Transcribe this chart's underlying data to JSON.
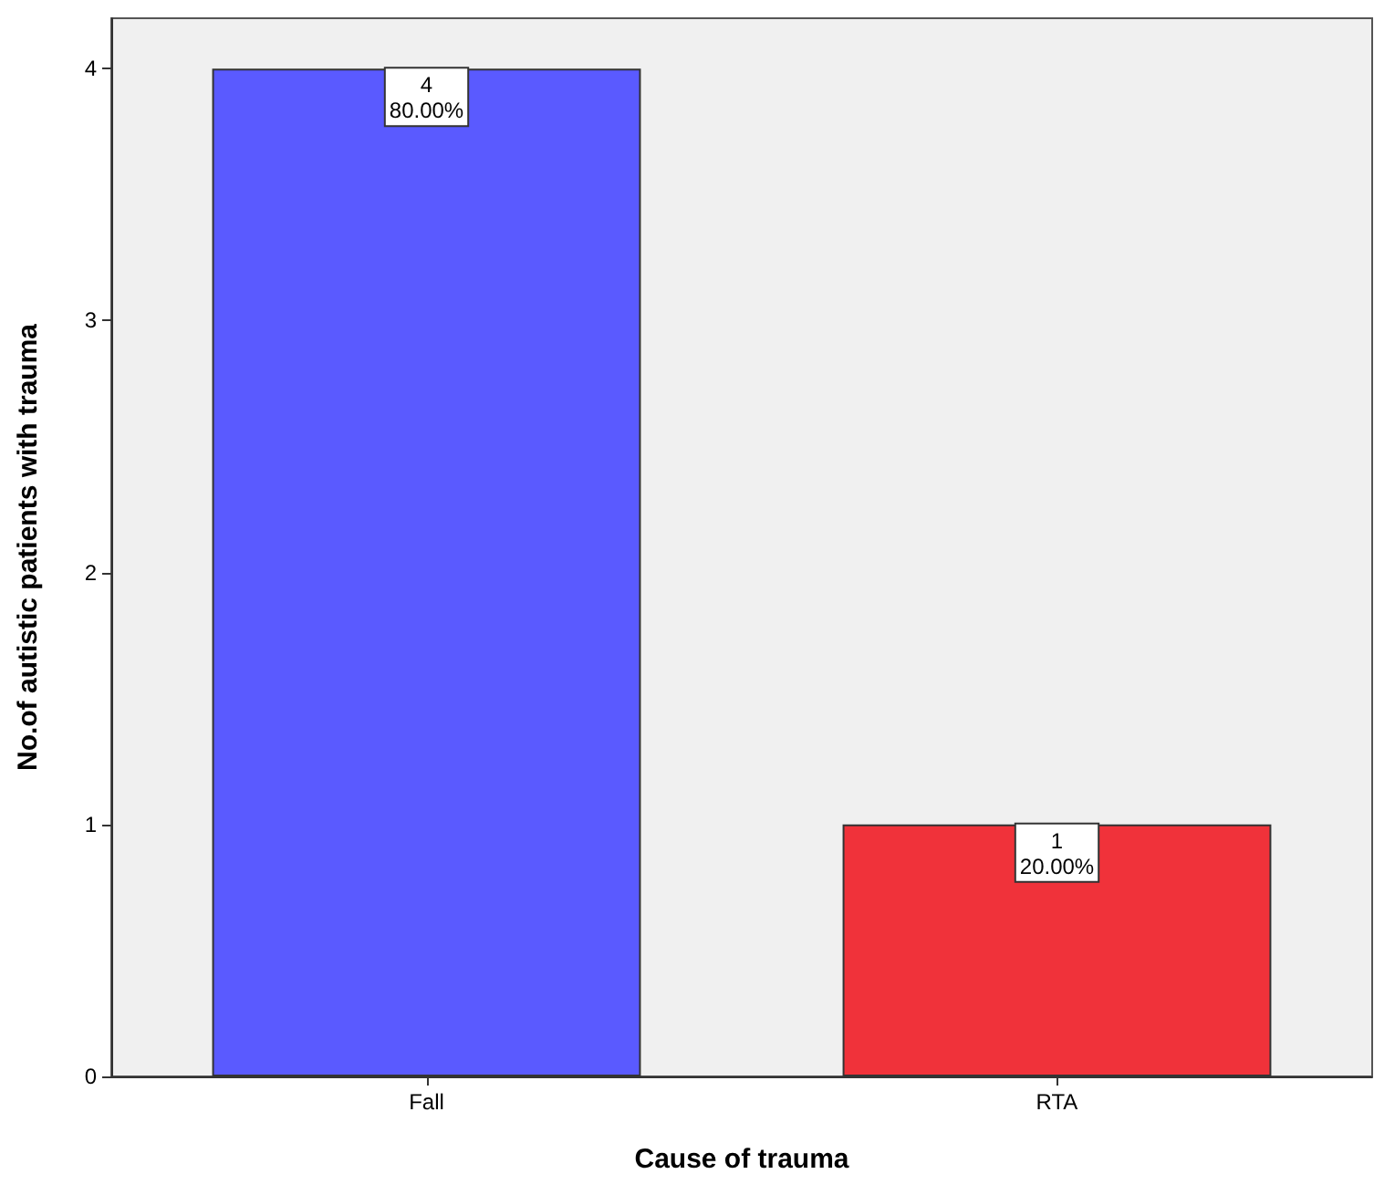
{
  "chart_data": {
    "type": "bar",
    "xlabel": "Cause of trauma",
    "ylabel": "No.of autistic patients with trauma",
    "categories": [
      "Fall",
      "RTA"
    ],
    "values": [
      4,
      1
    ],
    "colors": [
      "#5a5aff",
      "#f0323a"
    ],
    "value_labels": [
      "4\n80.00%",
      "1\n20.00%"
    ],
    "ylim": [
      0,
      4.2
    ],
    "yticks": [
      0,
      1,
      2,
      3,
      4
    ],
    "grid": false
  }
}
